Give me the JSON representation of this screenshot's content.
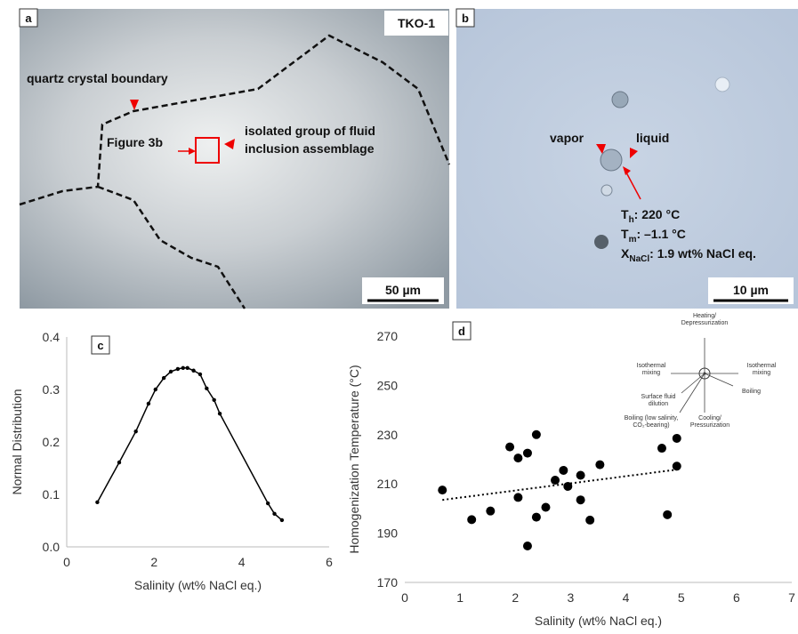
{
  "panel_a": {
    "label": "a",
    "sample": "TKO-1",
    "boundary_label": "quartz crystal boundary",
    "figure_ref": "Figure 3b",
    "group_label": [
      "isolated group of fluid",
      "inclusion assemblage"
    ],
    "scale": "50 µm"
  },
  "panel_b": {
    "label": "b",
    "vapor": "vapor",
    "liquid": "liquid",
    "th": {
      "symbol": "T",
      "sub": "h",
      "text": ": 220 °C"
    },
    "tm": {
      "symbol": "T",
      "sub": "m",
      "text": ": –1.1 °C"
    },
    "x": {
      "symbol": "X",
      "sub": "NaCl",
      "text": ": 1.9 wt% NaCl eq."
    },
    "scale": "10 µm"
  },
  "chart_data": [
    {
      "type": "line",
      "label": "c",
      "xlabel": "Salinity (wt% NaCl eq.)",
      "ylabel": "Normal Distribution",
      "color": "#000000",
      "x": [
        0.7,
        1.2,
        1.58,
        1.87,
        2.03,
        2.22,
        2.38,
        2.54,
        2.66,
        2.76,
        2.9,
        3.05,
        3.2,
        3.37,
        3.5,
        4.6,
        4.75,
        4.92
      ],
      "values": [
        0.085,
        0.161,
        0.22,
        0.273,
        0.3,
        0.322,
        0.334,
        0.339,
        0.341,
        0.341,
        0.336,
        0.329,
        0.302,
        0.28,
        0.254,
        0.083,
        0.063,
        0.051
      ],
      "xlim": [
        0,
        6
      ],
      "xticks": [
        0,
        2,
        4,
        6
      ],
      "ylim": [
        0,
        0.4
      ],
      "yticks": [
        {
          "value": 0,
          "label": "0.0"
        },
        0.1,
        0.2,
        0.3,
        0.4
      ]
    },
    {
      "type": "scatter",
      "label": "d",
      "xlabel": "Salinity (wt% NaCl eq.)",
      "ylabel": "Homogenization Temperature (°C)",
      "color": "#000000",
      "x": [
        0.68,
        1.21,
        1.55,
        1.9,
        2.05,
        2.05,
        2.22,
        2.22,
        2.38,
        2.38,
        2.55,
        2.72,
        2.87,
        2.95,
        3.18,
        3.18,
        3.35,
        3.53,
        4.65,
        4.75,
        4.92,
        4.92
      ],
      "values": [
        207.5,
        195.5,
        199,
        225,
        220.5,
        204.5,
        222.5,
        184.8,
        230,
        196.5,
        200.5,
        211.5,
        215.5,
        209,
        213.5,
        203.5,
        195.3,
        217.8,
        224.5,
        197.5,
        228.5,
        217.2
      ],
      "trendline": {
        "x": [
          0.68,
          4.92
        ],
        "values": [
          203.5,
          215.8
        ]
      },
      "xlim": [
        0,
        7
      ],
      "xticks": [
        0,
        1,
        2,
        3,
        4,
        5,
        6,
        7
      ],
      "ylim": [
        170,
        270
      ],
      "yticks": [
        170,
        190,
        210,
        230,
        250,
        270
      ],
      "inset": {
        "up": [
          "Heating/",
          "Depressurization"
        ],
        "left": [
          "Isothermal",
          "mixing"
        ],
        "right": [
          "Isothermal",
          "mixing"
        ],
        "lowright": [
          "Boiling"
        ],
        "lowleft": [
          "Surface fluid",
          "dilution"
        ],
        "bottomleft": [
          "Boiling (low salinity,",
          "CO₂-bearing)"
        ],
        "down": [
          "Cooling/",
          "Pressurization"
        ]
      }
    }
  ]
}
